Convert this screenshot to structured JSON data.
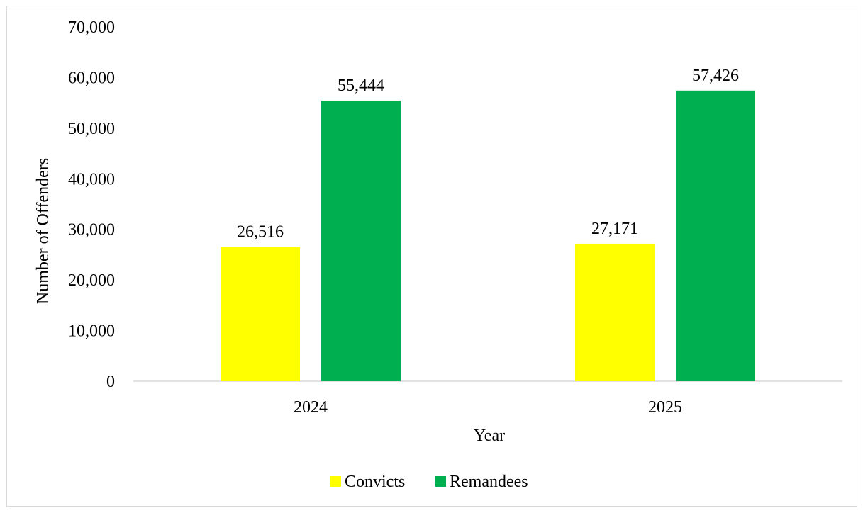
{
  "chart_data": {
    "type": "bar",
    "categories": [
      "2024",
      "2025"
    ],
    "series": [
      {
        "name": "Convicts",
        "values": [
          26516,
          27171
        ],
        "labels": [
          "26,516",
          "27,171"
        ],
        "color": "#ffff00"
      },
      {
        "name": "Remandees",
        "values": [
          55444,
          57426
        ],
        "labels": [
          "55,444",
          "57,426"
        ],
        "color": "#00b050"
      }
    ],
    "xlabel": "Year",
    "ylabel": "Number of Offenders",
    "ylim": [
      0,
      70000
    ],
    "yticks": [
      0,
      10000,
      20000,
      30000,
      40000,
      50000,
      60000,
      70000
    ],
    "ytick_labels": [
      "0",
      "10,000",
      "20,000",
      "30,000",
      "40,000",
      "50,000",
      "60,000",
      "70,000"
    ],
    "grid": false,
    "legend_position": "bottom"
  }
}
